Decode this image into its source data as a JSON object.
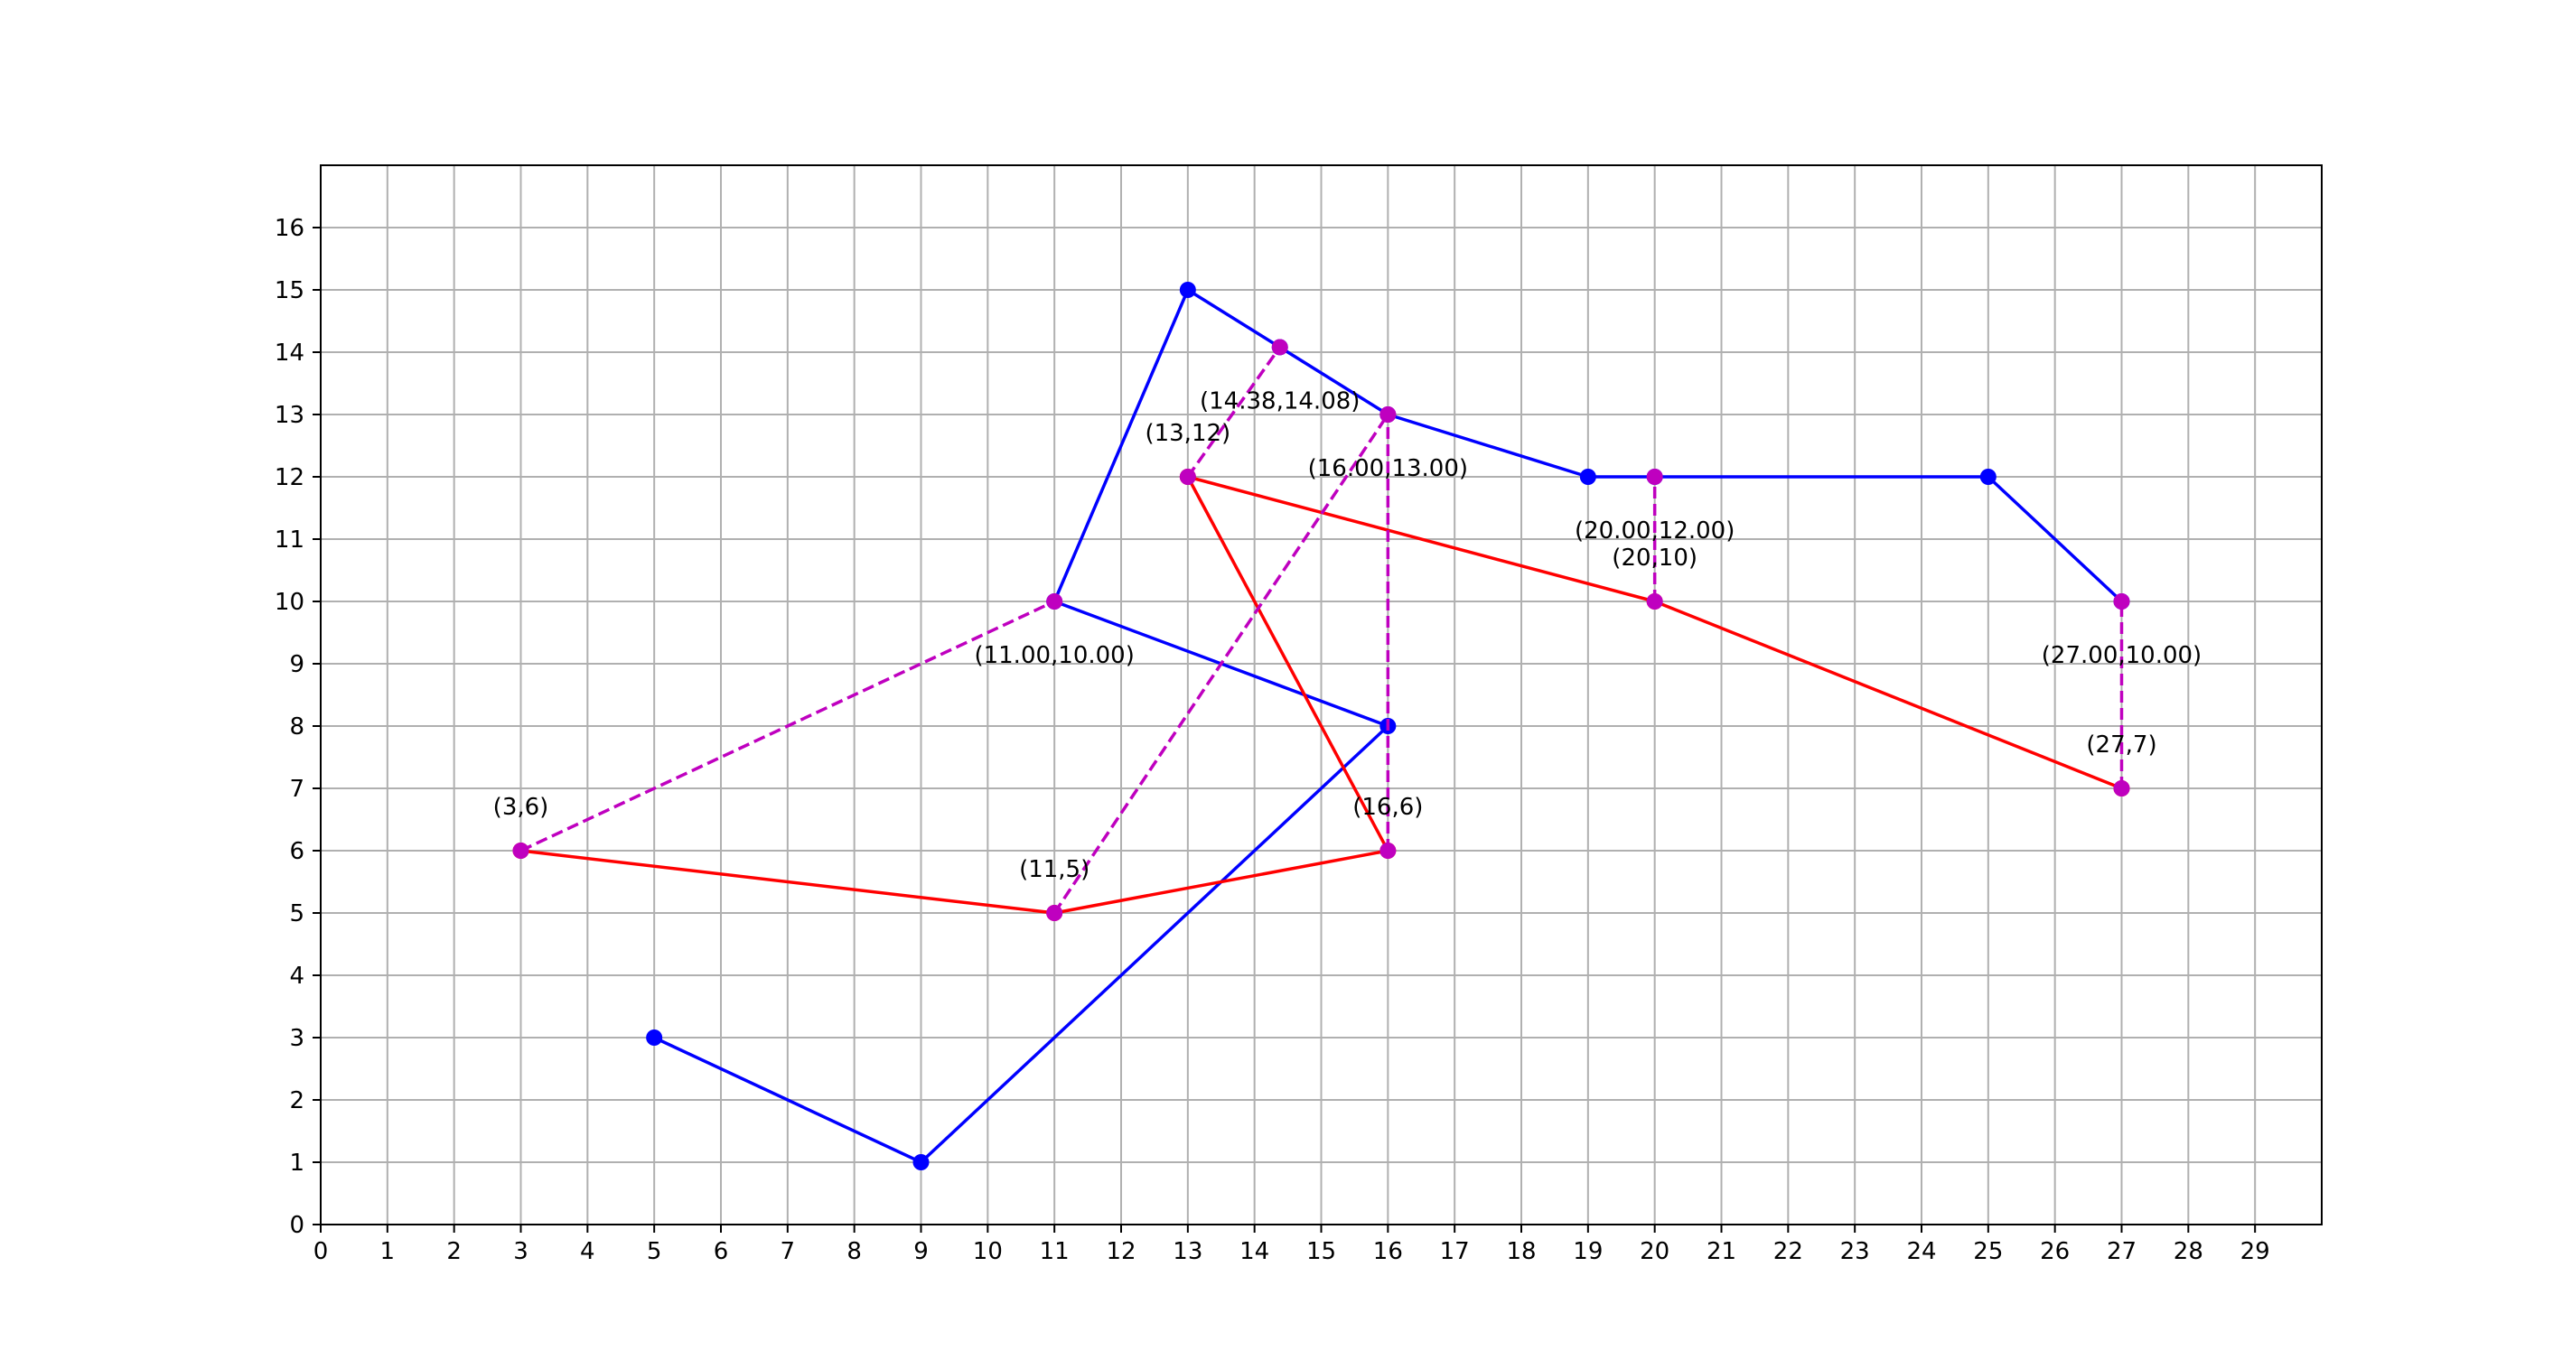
{
  "chart_data": {
    "type": "line",
    "title": "",
    "xlabel": "",
    "ylabel": "",
    "xlim": [
      0,
      30
    ],
    "ylim": [
      0,
      17
    ],
    "x_ticks": [
      0,
      1,
      2,
      3,
      4,
      5,
      6,
      7,
      8,
      9,
      10,
      11,
      12,
      13,
      14,
      15,
      16,
      17,
      18,
      19,
      20,
      21,
      22,
      23,
      24,
      25,
      26,
      27,
      28,
      29
    ],
    "y_ticks": [
      0,
      1,
      2,
      3,
      4,
      5,
      6,
      7,
      8,
      9,
      10,
      11,
      12,
      13,
      14,
      15,
      16
    ],
    "grid": true,
    "series": [
      {
        "color": "#0000ff",
        "style": "solid",
        "points": [
          [
            5,
            3
          ],
          [
            9,
            1
          ],
          [
            16,
            8
          ],
          [
            11,
            10
          ],
          [
            13,
            15
          ],
          [
            14.38,
            14.08
          ],
          [
            16,
            13
          ],
          [
            19,
            12
          ],
          [
            20,
            12
          ],
          [
            25,
            12
          ],
          [
            27,
            10
          ]
        ]
      },
      {
        "color": "#ff0000",
        "style": "solid",
        "points": [
          [
            3,
            6
          ],
          [
            11,
            5
          ],
          [
            16,
            6
          ],
          [
            13,
            12
          ],
          [
            20,
            10
          ],
          [
            27,
            7
          ]
        ]
      }
    ],
    "matches": [
      {
        "from": [
          3,
          6
        ],
        "to": [
          11,
          10
        ]
      },
      {
        "from": [
          11,
          5
        ],
        "to": [
          16,
          13
        ]
      },
      {
        "from": [
          16,
          6
        ],
        "to": [
          16,
          13
        ]
      },
      {
        "from": [
          13,
          12
        ],
        "to": [
          14.38,
          14.08
        ]
      },
      {
        "from": [
          20,
          10
        ],
        "to": [
          20,
          12
        ]
      },
      {
        "from": [
          27,
          7
        ],
        "to": [
          27,
          10
        ]
      }
    ],
    "match_color": "#bf00bf",
    "annotations": [
      {
        "text": "(3,6)",
        "x": 3,
        "y": 6,
        "pos": "above"
      },
      {
        "text": "(11,5)",
        "x": 11,
        "y": 5,
        "pos": "above"
      },
      {
        "text": "(16,6)",
        "x": 16,
        "y": 6,
        "pos": "above"
      },
      {
        "text": "(13,12)",
        "x": 13,
        "y": 12,
        "pos": "above"
      },
      {
        "text": "(20,10)",
        "x": 20,
        "y": 10,
        "pos": "above"
      },
      {
        "text": "(27,7)",
        "x": 27,
        "y": 7,
        "pos": "above"
      },
      {
        "text": "(11.00,10.00)",
        "x": 11,
        "y": 10,
        "pos": "below"
      },
      {
        "text": "(16.00,13.00)",
        "x": 16,
        "y": 13,
        "pos": "below"
      },
      {
        "text": "(14.38,14.08)",
        "x": 14.38,
        "y": 14.08,
        "pos": "below"
      },
      {
        "text": "(20.00,12.00)",
        "x": 20,
        "y": 12,
        "pos": "below"
      },
      {
        "text": "(27.00,10.00)",
        "x": 27,
        "y": 10,
        "pos": "below"
      }
    ]
  }
}
